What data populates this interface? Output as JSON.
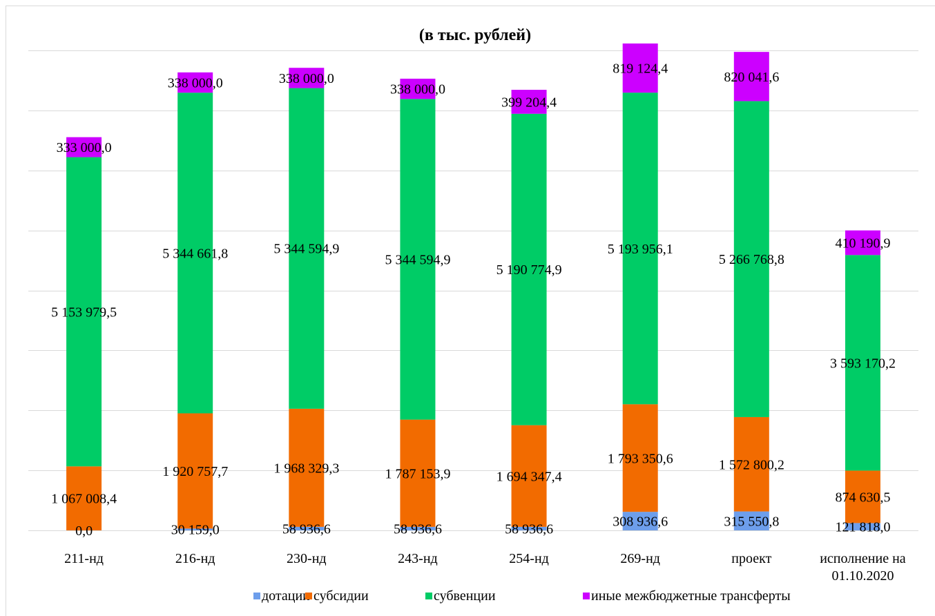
{
  "colors": {
    "dotacii": "#6d9eeb",
    "subsidii": "#f26b00",
    "subvencii": "#00cc66",
    "inye": "#cc00ff"
  },
  "chart_data": {
    "type": "bar",
    "stacked": true,
    "title": "(в тыс. рублей)",
    "xlabel": "",
    "ylabel": "",
    "ylim": [
      0,
      8000000
    ],
    "grid": true,
    "legend_position": "bottom",
    "categories": [
      [
        "211-нд"
      ],
      [
        "216-нд"
      ],
      [
        "230-нд"
      ],
      [
        "243-нд"
      ],
      [
        "254-нд"
      ],
      [
        "269-нд"
      ],
      [
        "проект"
      ],
      [
        "исполнение на",
        "01.10.2020"
      ]
    ],
    "series": [
      {
        "name": "дотации",
        "color_key": "dotacii",
        "values": [
          0.0,
          30159.0,
          58936.6,
          58936.6,
          58936.6,
          308936.6,
          315550.8,
          121818.0
        ],
        "labels": [
          "0,0",
          "30 159,0",
          "58 936,6",
          "58 936,6",
          "58 936,6",
          "308 936,6",
          "315 550,8",
          "121 818,0"
        ]
      },
      {
        "name": "субсидии",
        "color_key": "subsidii",
        "values": [
          1067008.4,
          1920757.7,
          1968329.3,
          1787153.9,
          1694347.4,
          1793350.6,
          1572800.2,
          874630.5
        ],
        "labels": [
          "1 067 008,4",
          "1 920 757,7",
          "1 968 329,3",
          "1 787 153,9",
          "1 694 347,4",
          "1 793 350,6",
          "1 572 800,2",
          "874 630,5"
        ]
      },
      {
        "name": "субвенции",
        "color_key": "subvencii",
        "values": [
          5153979.5,
          5344661.8,
          5344594.9,
          5344594.9,
          5190774.9,
          5193956.1,
          5266768.8,
          3593170.2
        ],
        "labels": [
          "5 153 979,5",
          "5 344 661,8",
          "5 344 594,9",
          "5 344 594,9",
          "5 190 774,9",
          "5 193 956,1",
          "5 266 768,8",
          "3 593 170,2"
        ]
      },
      {
        "name": "иные межбюджетные трансферты",
        "color_key": "inye",
        "values": [
          333000.0,
          338000.0,
          338000.0,
          338000.0,
          399204.4,
          819124.4,
          820041.6,
          410190.9
        ],
        "labels": [
          "333 000,0",
          "338 000,0",
          "338 000,0",
          "338 000,0",
          "399 204,4",
          "819 124,4",
          "820 041,6",
          "410 190,9"
        ]
      }
    ]
  }
}
